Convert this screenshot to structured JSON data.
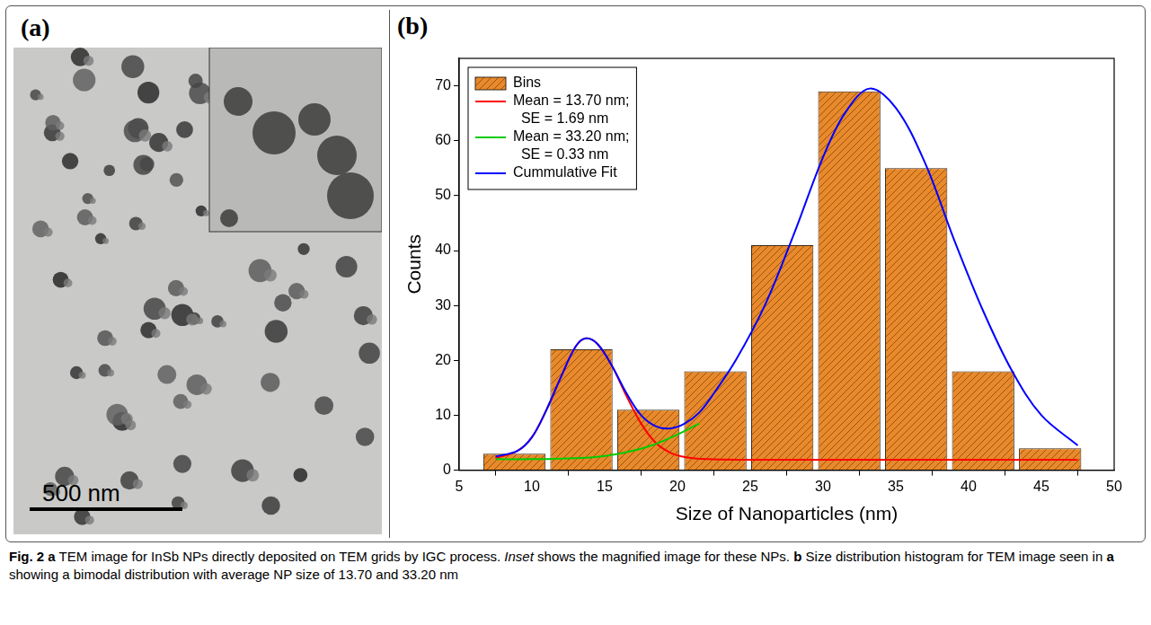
{
  "chart_data": {
    "type": "histogram",
    "xlabel": "Size of Nanoparticles (nm)",
    "ylabel": "Counts",
    "bins": [
      6.5,
      11.1,
      15.7,
      20.3,
      24.9,
      29.5,
      34.1,
      38.7,
      43.3,
      47.9
    ],
    "xlim": [
      5,
      50
    ],
    "xticks": [
      5,
      10,
      15,
      20,
      25,
      30,
      35,
      40,
      45,
      50
    ],
    "ylim": [
      0,
      75
    ],
    "yticks": [
      0,
      10,
      20,
      30,
      40,
      50,
      60,
      70
    ],
    "grid": false,
    "legend": "upper left",
    "series": [
      {
        "name": "Bins",
        "type": "bar",
        "color": "#e8892b",
        "values": [
          3,
          22,
          11,
          18,
          41,
          69,
          55,
          18,
          4
        ]
      },
      {
        "name": "Mean = 13.70 nm; SE = 1.69 nm",
        "type": "line",
        "color": "#ff0000",
        "x": [
          7.5,
          9,
          10,
          11,
          12,
          13,
          13.7,
          14.5,
          15.5,
          16.5,
          17.5,
          18.5,
          19.5,
          20.5,
          22,
          25,
          30,
          40,
          47.5
        ],
        "values": [
          2.2,
          3.5,
          6,
          11,
          17,
          22.5,
          24,
          23,
          19,
          13.5,
          8.5,
          5,
          3.2,
          2.4,
          2,
          1.9,
          1.9,
          1.9,
          1.9
        ]
      },
      {
        "name": "Mean = 33.20 nm; SE = 0.33 nm",
        "type": "line",
        "color": "#00cc00",
        "x": [
          7.5,
          10,
          12,
          14,
          16,
          18,
          20,
          21.5
        ],
        "values": [
          2,
          2,
          2.1,
          2.3,
          3,
          4.3,
          6.5,
          8.5
        ]
      },
      {
        "name": "Cummulative Fit",
        "type": "line",
        "color": "#0000ff",
        "x": [
          7.5,
          9,
          10,
          11,
          12,
          13,
          13.7,
          14.5,
          15.5,
          16.5,
          17.5,
          18.5,
          19.5,
          20.5,
          21.5,
          22.5,
          24,
          26,
          28,
          30,
          31.5,
          33.2,
          35,
          37,
          39,
          41,
          43,
          45,
          47.5
        ],
        "values": [
          2.5,
          3.5,
          6,
          11,
          17,
          22.5,
          24,
          23,
          19,
          14,
          10,
          8,
          7.6,
          8.5,
          10.5,
          14,
          20,
          30,
          43,
          57,
          65,
          69.5,
          66,
          56,
          42,
          29,
          18,
          10,
          4.5
        ]
      }
    ]
  },
  "panels": {
    "a": {
      "label": "(a)",
      "scale_bar": "500 nm"
    },
    "b": {
      "label": "(b)"
    }
  },
  "caption": [
    {
      "text": "Fig. 2",
      "style": "bold"
    },
    {
      "text": "a",
      "style": "bold"
    },
    {
      "text": "TEM image for InSb NPs directly deposited on TEM grids by IGC process.",
      "style": "plain"
    },
    {
      "text": "Inset",
      "style": "italic"
    },
    {
      "text": "shows the magnified image for these NPs.",
      "style": "plain"
    },
    {
      "text": "b",
      "style": "bold"
    },
    {
      "text": "Size distribution histogram for TEM image seen in",
      "style": "plain"
    },
    {
      "text": "a",
      "style": "bold"
    },
    {
      "text": "showing a bimodal distribution with average NP size of 13.70 and 33.20 nm",
      "style": "plain"
    }
  ]
}
